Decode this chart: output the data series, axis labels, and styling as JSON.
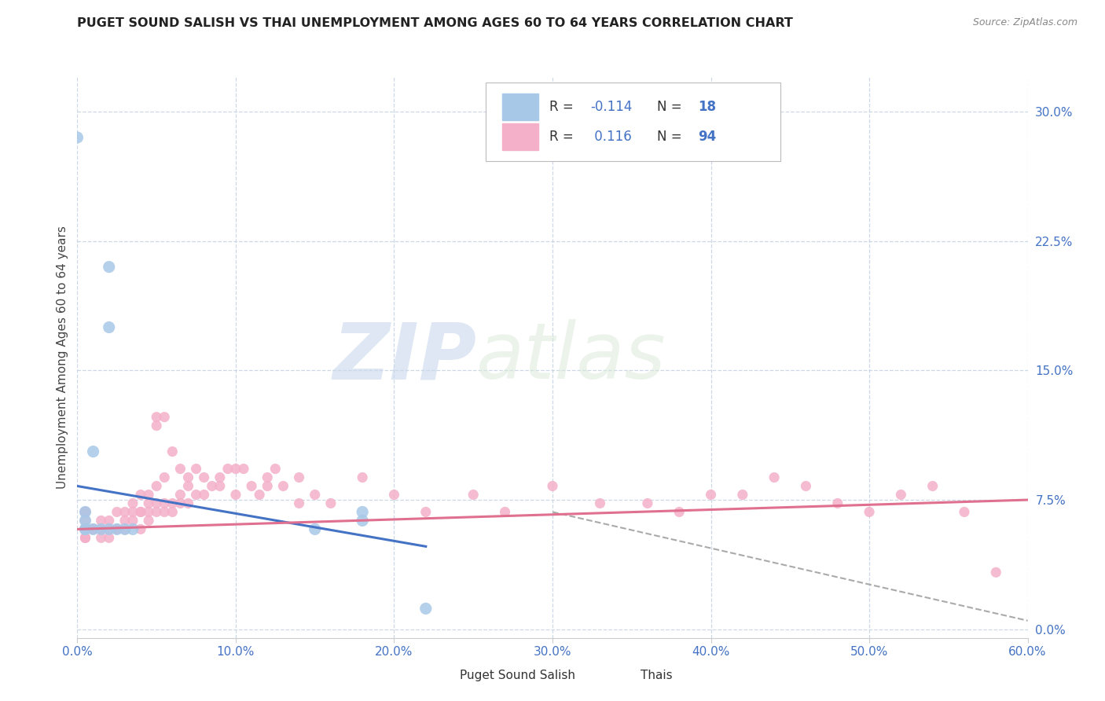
{
  "title": "PUGET SOUND SALISH VS THAI UNEMPLOYMENT AMONG AGES 60 TO 64 YEARS CORRELATION CHART",
  "source": "Source: ZipAtlas.com",
  "xlim": [
    0.0,
    0.6
  ],
  "ylim": [
    -0.005,
    0.32
  ],
  "xtick_vals": [
    0.0,
    0.1,
    0.2,
    0.3,
    0.4,
    0.5,
    0.6
  ],
  "ytick_vals": [
    0.0,
    0.075,
    0.15,
    0.225,
    0.3
  ],
  "ytick_labels": [
    "0.0%",
    "7.5%",
    "15.0%",
    "22.5%",
    "30.0%"
  ],
  "salish_color": "#a8c8e8",
  "thai_color": "#f4b0c8",
  "salish_trend_color": "#4472c4",
  "thai_trend_color": "#e07090",
  "dashed_line_color": "#aaaaaa",
  "background_color": "#ffffff",
  "grid_color": "#c8d4e4",
  "watermark_zip": "ZIP",
  "watermark_atlas": "atlas",
  "watermark_color": "#dde8f0",
  "tick_color": "#4472c4",
  "ylabel_text": "Unemployment Among Ages 60 to 64 years",
  "legend_r1": "R = ",
  "legend_v1": "-0.114",
  "legend_n1_label": "N = ",
  "legend_n1": "18",
  "legend_r2": "R =  ",
  "legend_v2": " 0.116",
  "legend_n2_label": "N = ",
  "legend_n2": "94",
  "salish_points": [
    [
      0.0,
      0.285
    ],
    [
      0.02,
      0.21
    ],
    [
      0.02,
      0.175
    ],
    [
      0.01,
      0.103
    ],
    [
      0.005,
      0.068
    ],
    [
      0.005,
      0.063
    ],
    [
      0.005,
      0.058
    ],
    [
      0.005,
      0.058
    ],
    [
      0.01,
      0.058
    ],
    [
      0.015,
      0.058
    ],
    [
      0.02,
      0.058
    ],
    [
      0.025,
      0.058
    ],
    [
      0.03,
      0.058
    ],
    [
      0.035,
      0.058
    ],
    [
      0.15,
      0.058
    ],
    [
      0.18,
      0.063
    ],
    [
      0.18,
      0.068
    ],
    [
      0.22,
      0.012
    ]
  ],
  "thai_points": [
    [
      0.005,
      0.068
    ],
    [
      0.005,
      0.068
    ],
    [
      0.005,
      0.068
    ],
    [
      0.005,
      0.068
    ],
    [
      0.005,
      0.063
    ],
    [
      0.005,
      0.058
    ],
    [
      0.005,
      0.053
    ],
    [
      0.005,
      0.053
    ],
    [
      0.005,
      0.053
    ],
    [
      0.01,
      0.058
    ],
    [
      0.01,
      0.058
    ],
    [
      0.01,
      0.058
    ],
    [
      0.015,
      0.063
    ],
    [
      0.015,
      0.058
    ],
    [
      0.015,
      0.058
    ],
    [
      0.015,
      0.053
    ],
    [
      0.02,
      0.063
    ],
    [
      0.02,
      0.058
    ],
    [
      0.02,
      0.053
    ],
    [
      0.025,
      0.068
    ],
    [
      0.025,
      0.058
    ],
    [
      0.025,
      0.058
    ],
    [
      0.03,
      0.068
    ],
    [
      0.03,
      0.063
    ],
    [
      0.03,
      0.058
    ],
    [
      0.035,
      0.073
    ],
    [
      0.035,
      0.068
    ],
    [
      0.035,
      0.063
    ],
    [
      0.04,
      0.078
    ],
    [
      0.04,
      0.068
    ],
    [
      0.04,
      0.068
    ],
    [
      0.04,
      0.058
    ],
    [
      0.045,
      0.078
    ],
    [
      0.045,
      0.073
    ],
    [
      0.045,
      0.068
    ],
    [
      0.045,
      0.063
    ],
    [
      0.05,
      0.123
    ],
    [
      0.05,
      0.118
    ],
    [
      0.05,
      0.083
    ],
    [
      0.05,
      0.073
    ],
    [
      0.05,
      0.068
    ],
    [
      0.055,
      0.123
    ],
    [
      0.055,
      0.088
    ],
    [
      0.055,
      0.073
    ],
    [
      0.055,
      0.068
    ],
    [
      0.06,
      0.103
    ],
    [
      0.06,
      0.073
    ],
    [
      0.06,
      0.068
    ],
    [
      0.065,
      0.093
    ],
    [
      0.065,
      0.078
    ],
    [
      0.065,
      0.073
    ],
    [
      0.07,
      0.088
    ],
    [
      0.07,
      0.083
    ],
    [
      0.07,
      0.073
    ],
    [
      0.075,
      0.093
    ],
    [
      0.075,
      0.078
    ],
    [
      0.08,
      0.088
    ],
    [
      0.08,
      0.078
    ],
    [
      0.085,
      0.083
    ],
    [
      0.09,
      0.088
    ],
    [
      0.09,
      0.083
    ],
    [
      0.095,
      0.093
    ],
    [
      0.1,
      0.093
    ],
    [
      0.1,
      0.078
    ],
    [
      0.105,
      0.093
    ],
    [
      0.11,
      0.083
    ],
    [
      0.115,
      0.078
    ],
    [
      0.12,
      0.088
    ],
    [
      0.12,
      0.083
    ],
    [
      0.125,
      0.093
    ],
    [
      0.13,
      0.083
    ],
    [
      0.14,
      0.088
    ],
    [
      0.14,
      0.073
    ],
    [
      0.15,
      0.078
    ],
    [
      0.16,
      0.073
    ],
    [
      0.18,
      0.088
    ],
    [
      0.2,
      0.078
    ],
    [
      0.22,
      0.068
    ],
    [
      0.25,
      0.078
    ],
    [
      0.27,
      0.068
    ],
    [
      0.3,
      0.083
    ],
    [
      0.33,
      0.073
    ],
    [
      0.36,
      0.073
    ],
    [
      0.38,
      0.068
    ],
    [
      0.4,
      0.078
    ],
    [
      0.42,
      0.078
    ],
    [
      0.44,
      0.088
    ],
    [
      0.46,
      0.083
    ],
    [
      0.48,
      0.073
    ],
    [
      0.5,
      0.068
    ],
    [
      0.52,
      0.078
    ],
    [
      0.54,
      0.083
    ],
    [
      0.56,
      0.068
    ],
    [
      0.58,
      0.033
    ]
  ],
  "salish_trendline_x": [
    0.0,
    0.22
  ],
  "salish_trendline_y": [
    0.083,
    0.048
  ],
  "thai_trendline_x": [
    0.0,
    0.6
  ],
  "thai_trendline_y": [
    0.058,
    0.075
  ],
  "dashed_line_x": [
    0.3,
    0.6
  ],
  "dashed_line_y": [
    0.068,
    0.005
  ]
}
